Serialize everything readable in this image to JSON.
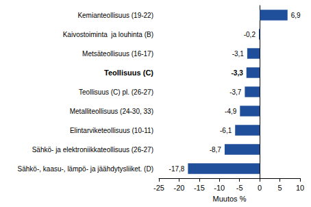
{
  "chart_data": {
    "type": "bar",
    "orientation": "horizontal",
    "categories": [
      "Kemianteollisuus (19-22)",
      "Kaivostoiminta  ja louhinta (B)",
      "Metsäteollisuus (16-17)",
      "Teollisuus (C)",
      "Teollisuus (C) pl. (26-27)",
      "Metalliteollisuus (24-30, 33)",
      "Elintarviketeollisuus (10-11)",
      "Sähkö- ja elektroniikkateollisuus (26-27)",
      "Sähkö-, kaasu-, lämpö- ja jäähdytysliiket. (D)"
    ],
    "values": [
      6.9,
      -0.2,
      -3.1,
      -3.3,
      -3.7,
      -4.9,
      -6.1,
      -8.7,
      -17.8
    ],
    "value_labels": [
      "6,9",
      "-0,2",
      "-3,1",
      "-3,3",
      "-3,7",
      "-4,9",
      "-6,1",
      "-8,7",
      "-17,8"
    ],
    "data_labels": true,
    "color": "#1f4e9a",
    "x_label": "Muutos %",
    "xlim": [
      -25,
      10
    ],
    "xticks": [
      -25,
      -20,
      -15,
      -10,
      -5,
      0,
      5,
      10
    ],
    "grid": false
  }
}
